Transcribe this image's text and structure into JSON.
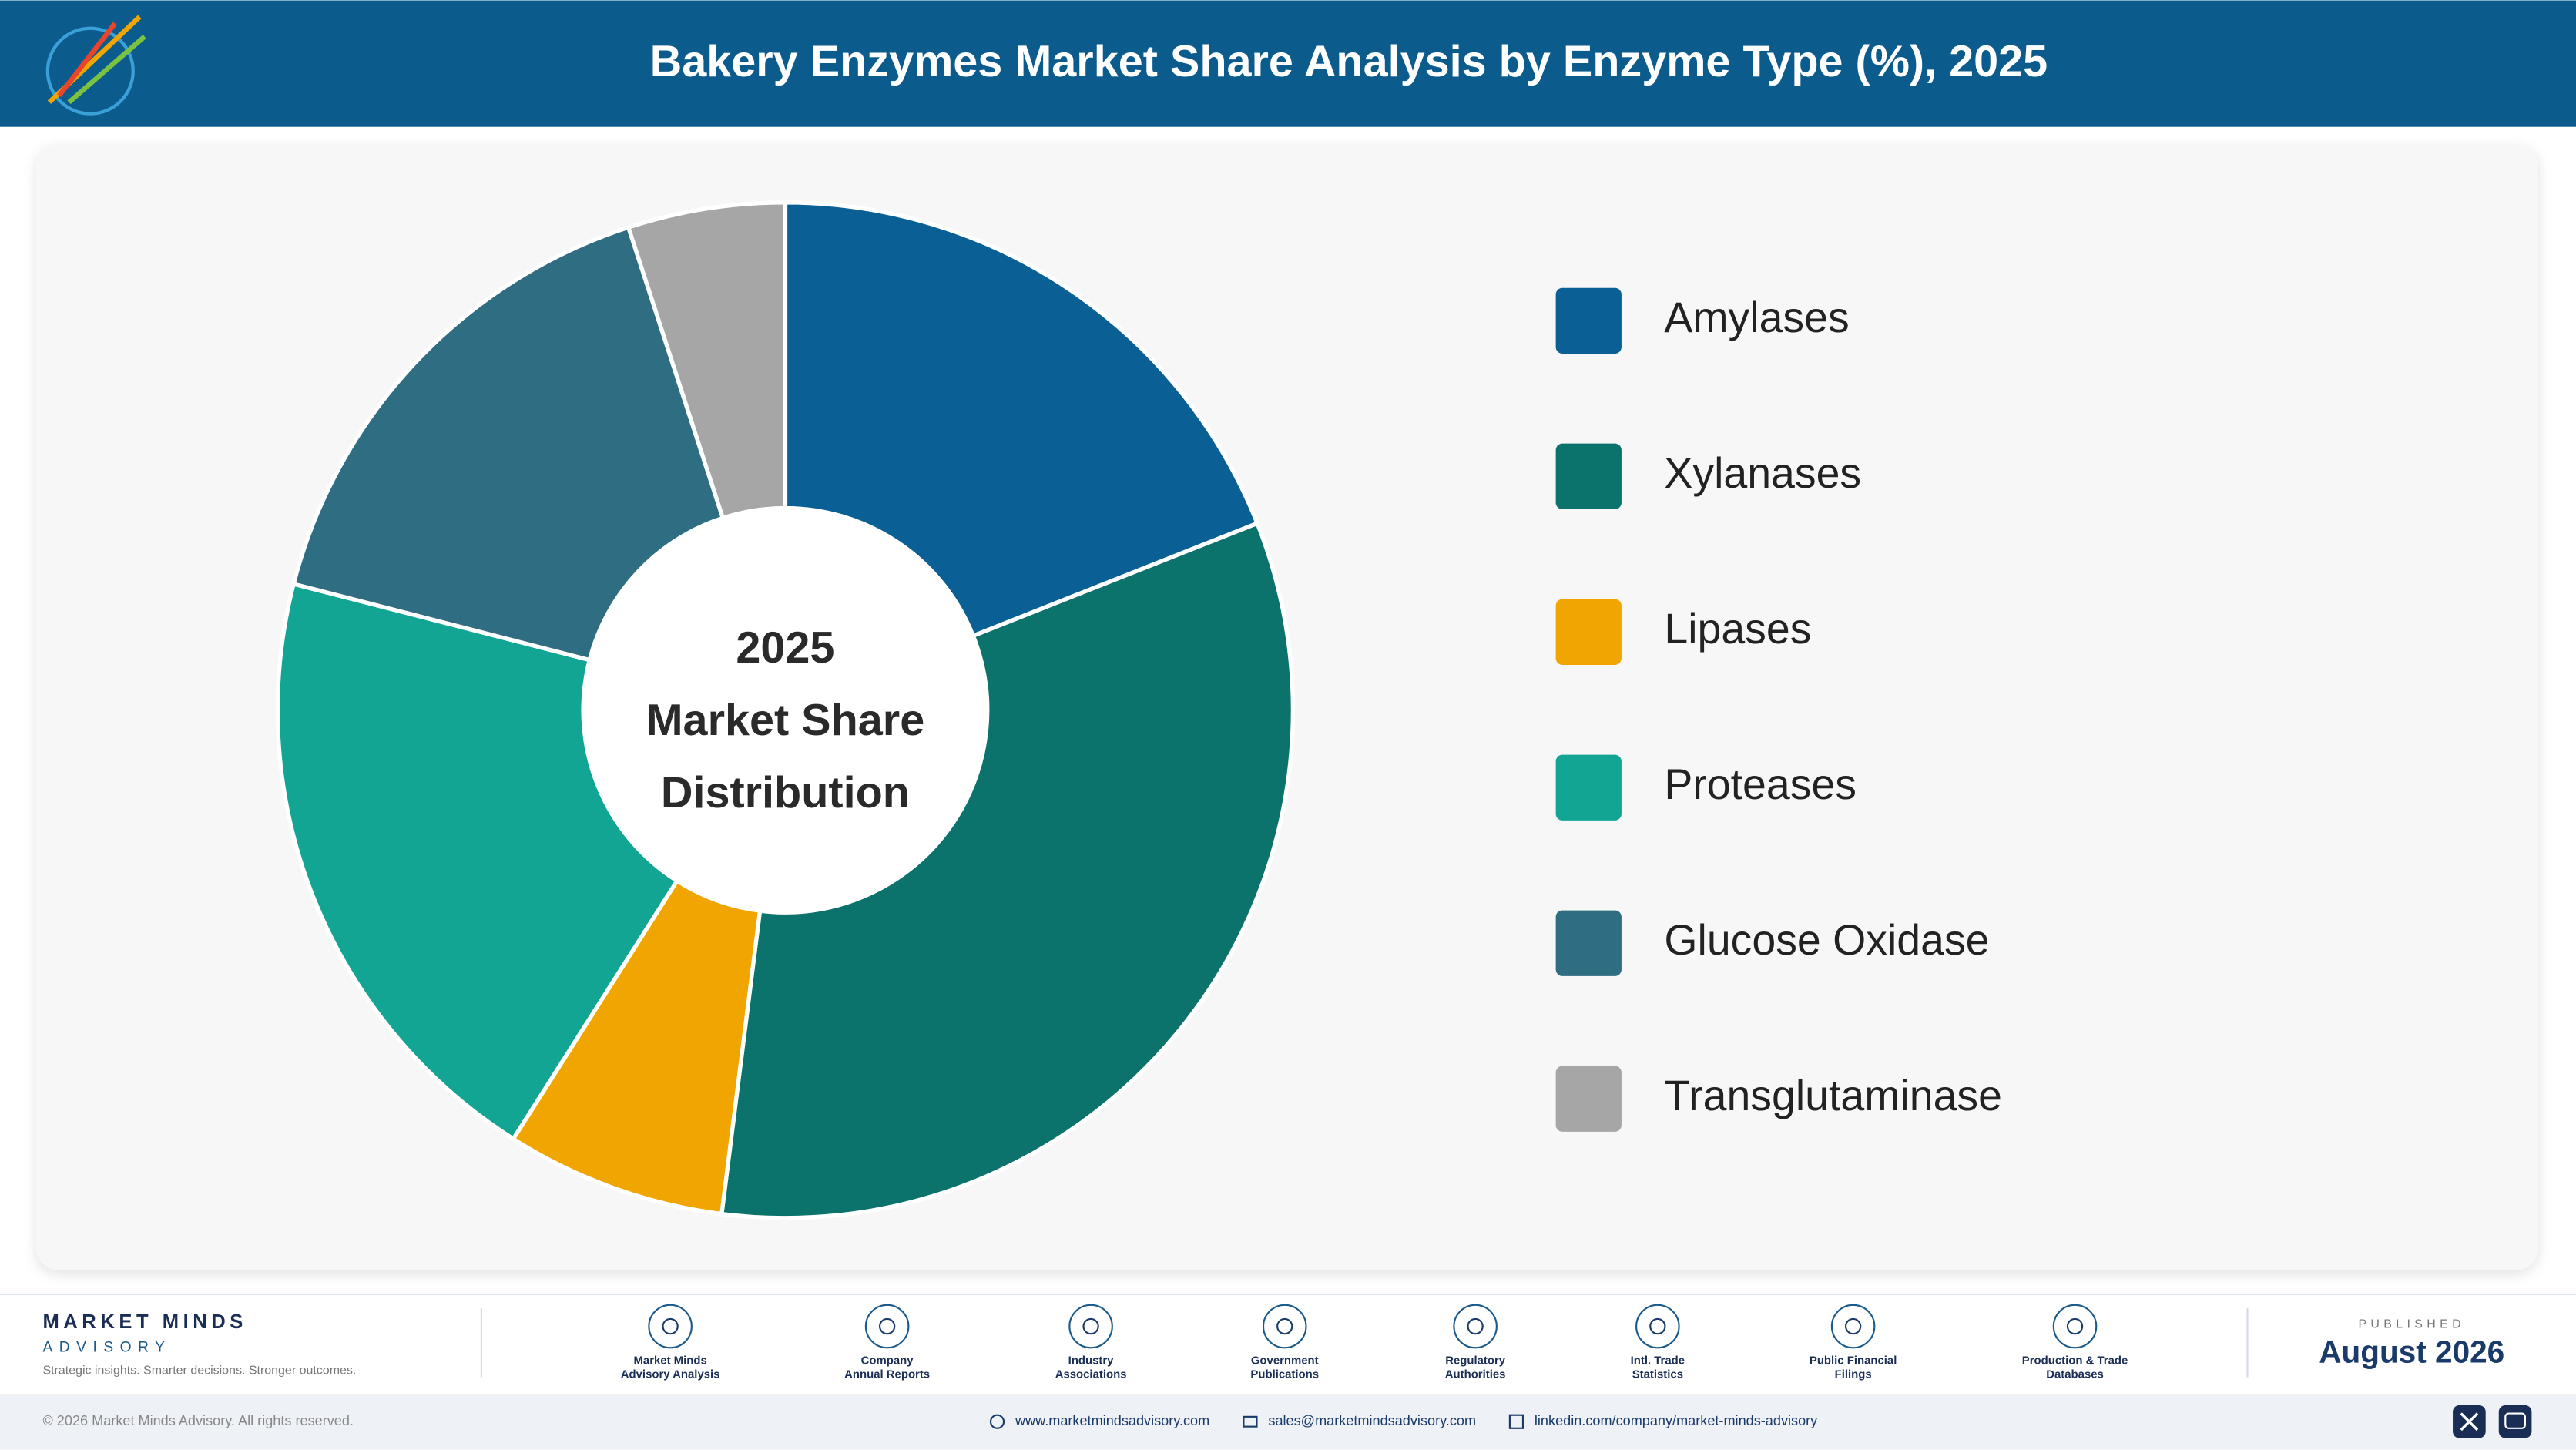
{
  "header": {
    "title": "Bakery Enzymes Market Share Analysis by Enzyme Type (%), 2025"
  },
  "chart_data": {
    "type": "donut",
    "center_text": [
      "2025",
      "Market Share",
      "Distribution"
    ],
    "categories": [
      "Amylases",
      "Xylanases",
      "Lipases",
      "Proteases",
      "Glucose Oxidase",
      "Transglutaminase"
    ],
    "values": [
      19,
      33,
      7,
      20,
      16,
      5
    ],
    "colors": [
      "#0a5f94",
      "#0b736c",
      "#f0a500",
      "#13a594",
      "#2f6e82",
      "#a6a6a6"
    ]
  },
  "footer": {
    "brand": "MARKET MINDS",
    "brand_sub": "ADVISORY",
    "tagline": "Strategic insights. Smarter decisions. Stronger outcomes.",
    "sources": [
      {
        "lines": [
          "Market Minds",
          "Advisory Analysis"
        ]
      },
      {
        "lines": [
          "Company",
          "Annual Reports"
        ]
      },
      {
        "lines": [
          "Industry",
          "Associations"
        ]
      },
      {
        "lines": [
          "Government",
          "Publications"
        ]
      },
      {
        "lines": [
          "Regulatory",
          "Authorities"
        ]
      },
      {
        "lines": [
          "Intl. Trade",
          "Statistics"
        ]
      },
      {
        "lines": [
          "Public Financial",
          "Filings"
        ]
      },
      {
        "lines": [
          "Production & Trade",
          "Databases"
        ]
      }
    ],
    "published_label": "PUBLISHED",
    "published_date": "August 2026",
    "copyright": "© 2026 Market Minds Advisory. All rights reserved.",
    "website": "www.marketmindsadvisory.com",
    "email": "sales@marketmindsadvisory.com",
    "linkedin": "linkedin.com/company/market-minds-advisory"
  }
}
